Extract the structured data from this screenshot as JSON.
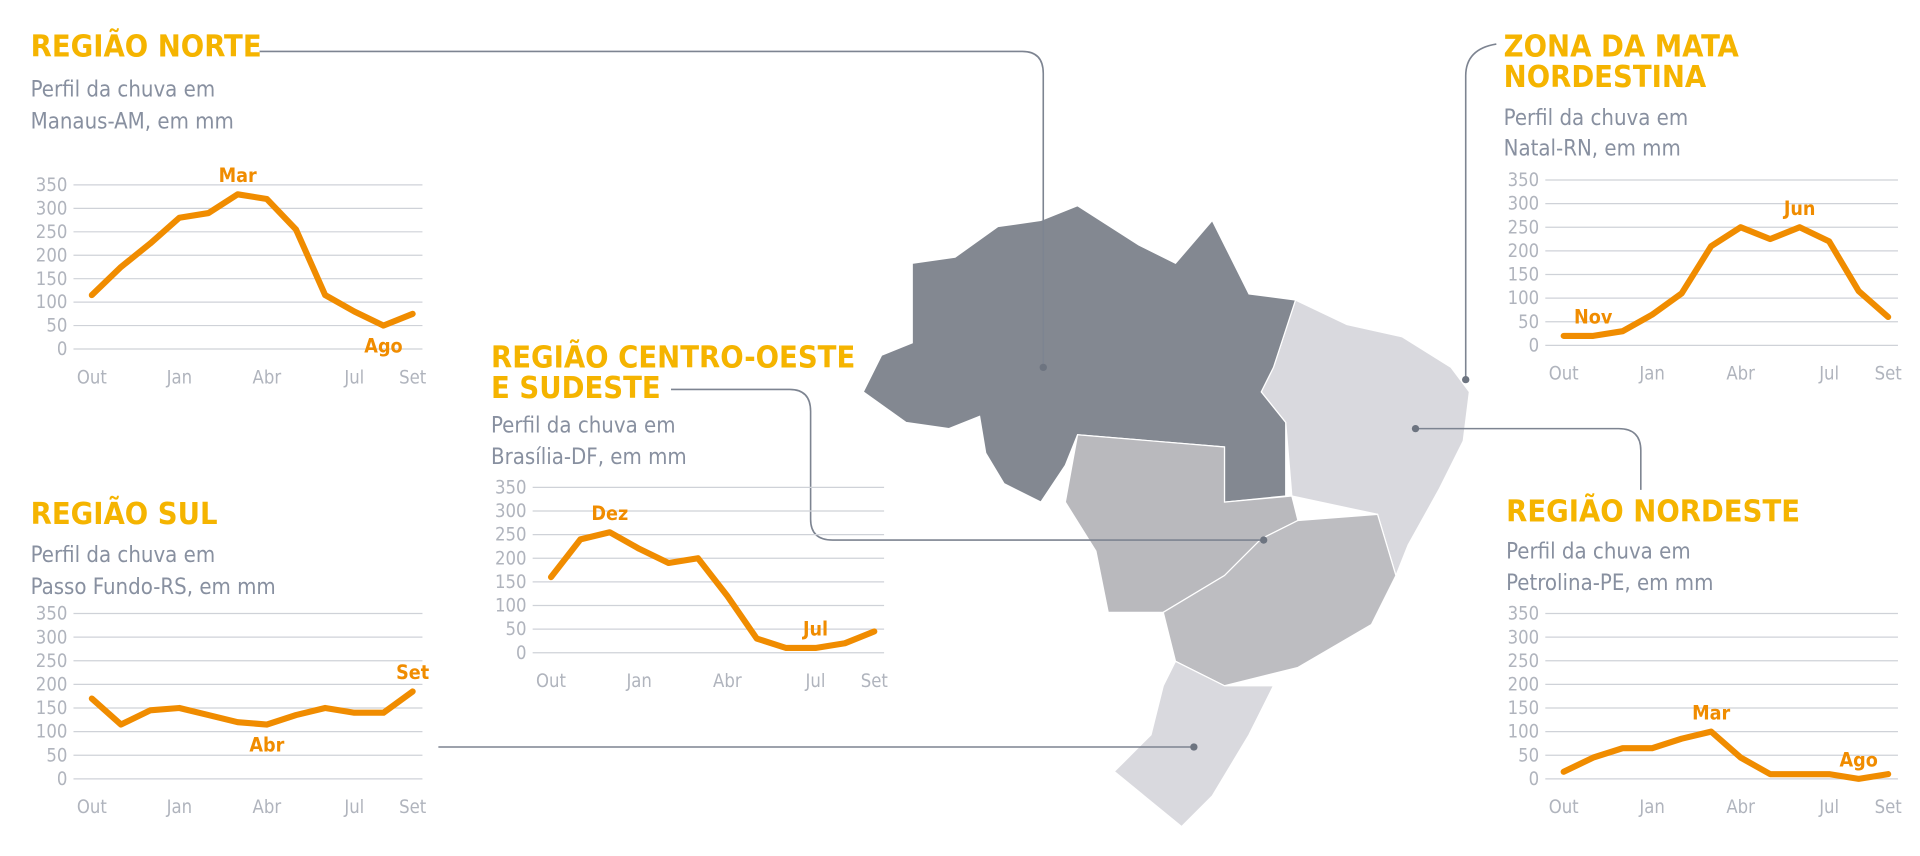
{
  "chart_data": [
    {
      "type": "line",
      "title": [
        "REGIÃO NORTE"
      ],
      "subtitle": [
        "Perfil da chuva em",
        "Manaus-AM, em mm"
      ],
      "categories": [
        "Out",
        null,
        null,
        "Jan",
        null,
        null,
        "Abr",
        null,
        null,
        "Jul",
        null,
        "Set"
      ],
      "values": [
        115,
        175,
        225,
        280,
        290,
        330,
        320,
        255,
        115,
        80,
        50,
        75
      ],
      "color": "#f08c00",
      "annotations": [
        {
          "text": "Mar",
          "index": 5
        },
        {
          "text": "Ago",
          "index": 10
        }
      ],
      "ylim": [
        0,
        350
      ],
      "yticks": [
        0,
        50,
        100,
        150,
        200,
        250,
        300,
        350
      ],
      "grid": true
    },
    {
      "type": "line",
      "title": [
        "ZONA DA MATA",
        "NORDESTINA"
      ],
      "subtitle": [
        "Perfil da chuva em",
        "Natal-RN, em mm"
      ],
      "categories": [
        "Out",
        null,
        null,
        "Jan",
        null,
        null,
        "Abr",
        null,
        null,
        "Jul",
        null,
        "Set"
      ],
      "values": [
        20,
        20,
        30,
        65,
        110,
        210,
        250,
        225,
        250,
        220,
        115,
        60
      ],
      "color": "#f08c00",
      "annotations": [
        {
          "text": "Nov",
          "index": 1
        },
        {
          "text": "Jun",
          "index": 8
        }
      ],
      "ylim": [
        0,
        350
      ],
      "yticks": [
        0,
        50,
        100,
        150,
        200,
        250,
        300,
        350
      ],
      "grid": true
    },
    {
      "type": "line",
      "title": [
        "REGIÃO CENTRO-OESTE",
        "E SUDESTE"
      ],
      "subtitle": [
        "Perfil da chuva em",
        "Brasília-DF, em mm"
      ],
      "categories": [
        "Out",
        null,
        null,
        "Jan",
        null,
        null,
        "Abr",
        null,
        null,
        "Jul",
        null,
        "Set"
      ],
      "values": [
        160,
        240,
        255,
        220,
        190,
        200,
        120,
        30,
        10,
        10,
        20,
        45
      ],
      "color": "#f08c00",
      "annotations": [
        {
          "text": "Dez",
          "index": 2
        },
        {
          "text": "Jul",
          "index": 9
        }
      ],
      "ylim": [
        0,
        350
      ],
      "yticks": [
        0,
        50,
        100,
        150,
        200,
        250,
        300,
        350
      ],
      "grid": true
    },
    {
      "type": "line",
      "title": [
        "REGIÃO SUL"
      ],
      "subtitle": [
        "Perfil da chuva em",
        "Passo Fundo-RS, em mm"
      ],
      "categories": [
        "Out",
        null,
        null,
        "Jan",
        null,
        null,
        "Abr",
        null,
        null,
        "Jul",
        null,
        "Set"
      ],
      "values": [
        170,
        115,
        145,
        150,
        135,
        120,
        115,
        135,
        150,
        140,
        140,
        185
      ],
      "color": "#f08c00",
      "annotations": [
        {
          "text": "Abr",
          "index": 6
        },
        {
          "text": "Set",
          "index": 11
        }
      ],
      "ylim": [
        0,
        350
      ],
      "yticks": [
        0,
        50,
        100,
        150,
        200,
        250,
        300,
        350
      ],
      "grid": true
    },
    {
      "type": "line",
      "title": [
        "REGIÃO NORDESTE"
      ],
      "subtitle": [
        "Perfil da chuva em",
        "Petrolina-PE, em mm"
      ],
      "categories": [
        "Out",
        null,
        null,
        "Jan",
        null,
        null,
        "Abr",
        null,
        null,
        "Jul",
        null,
        "Set"
      ],
      "values": [
        15,
        45,
        65,
        65,
        85,
        100,
        45,
        10,
        10,
        10,
        0,
        10
      ],
      "color": "#f08c00",
      "annotations": [
        {
          "text": "Mar",
          "index": 5
        },
        {
          "text": "Ago",
          "index": 10
        }
      ],
      "ylim": [
        0,
        350
      ],
      "yticks": [
        0,
        50,
        100,
        150,
        200,
        250,
        300,
        350
      ],
      "grid": true
    }
  ]
}
